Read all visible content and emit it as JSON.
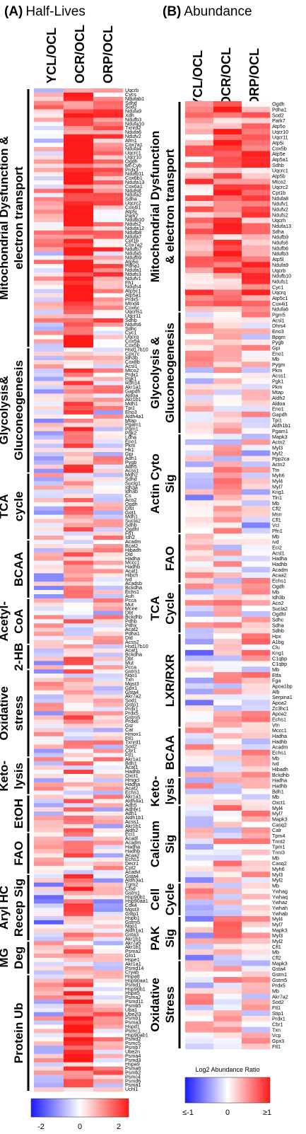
{
  "chart_data": [
    {
      "type": "heatmap",
      "panel_letter": "(A)",
      "title": "Half-Lives",
      "columns": [
        "YCL/OCL",
        "OCR/OCL",
        "ORP/OCL"
      ],
      "colorbar_ticks": [
        "-2",
        "0",
        "2"
      ],
      "value_range": [
        -2,
        2
      ],
      "colors": {
        "low": "#1a1aff",
        "mid": "#ffffff",
        "high": "#ff1a1a"
      },
      "categories": [
        {
          "label_lines": [
            "Mitochondrial Dysfunction &",
            "electron transport"
          ],
          "genes": [
            "Uqcrb",
            "Cycs",
            "Ndufab1",
            "Sdhd",
            "Sod2",
            "Ndufa9",
            "Xdh",
            "Ndufb3",
            "Ndufa10",
            "Txnrd2",
            "Ndufa6",
            "Ndufv2",
            "Afm1",
            "Cox7a1",
            "Ndufa4",
            "Uqcrc1",
            "Uqcr10",
            "Ogdh",
            "Mt-Cyb",
            "Prdx3",
            "Ndufb11",
            "Cox6b1",
            "Ndufa13",
            "Cox6a1",
            "Ndufs8",
            "Ndufa2",
            "Sdha",
            "Uqcrc2",
            "Cox4i1",
            "Atp5j",
            "Park7",
            "Ndufb10",
            "Ndufs2",
            "Ndufa12",
            "Ndufb8",
            "Ndufa7",
            "Cpt1b",
            "Cox7a2",
            "Ndufb7",
            "Ndufa5",
            "Ndufb9",
            "Atp5o",
            "Pdha1",
            "Ndufa1",
            "Ndufs3",
            "Ndufv1",
            "Fh1",
            "Ndufs4",
            "Atp5c1",
            "Atp5a1",
            "Prdx5",
            "Mtnd4",
            "Cox6c",
            "Uqcrfs1",
            "Uqcr11",
            "Sdhb",
            "Ndufs6",
            "Sdhc",
            "Cyc1",
            "Uqcrq",
            "Cox5a",
            "Cox5b"
          ]
        },
        {
          "label_lines": [
            "Glycolysis&",
            "Gluconeogenesis"
          ],
          "genes": [
            "Hsd17b10",
            "Cox7c",
            "Idh3b",
            "Cox8b",
            "Acsl1",
            "Mtco2",
            "Prdx1",
            "Pgk1",
            "Rdh14",
            "Akr1a1",
            "Gapdh",
            "Aldoa",
            "Akr1b1",
            "Mdh1",
            "Tpi1",
            "Eno3",
            "Aldh4a1",
            "Mtap",
            "Pgam1",
            "Pgm1",
            "Pgk2",
            "Ldha",
            "Eno1",
            "Pkm",
            "Hk1",
            "Gpi",
            "Adh1",
            "Pygb",
            "Adh5",
            "Acss1"
          ]
        },
        {
          "label_lines": [
            "TCA",
            "cycle"
          ],
          "genes": [
            "Mdh2",
            "Sdhd",
            "Suclg1",
            "Idh3a",
            "Idh3b",
            "Cs",
            "Aco2",
            "Ogdh",
            "Dlst",
            "Got1",
            "Mdh1",
            "Sucla2",
            "Sdhb",
            "Ogdhl",
            "Fh1",
            "Idh2"
          ]
        },
        {
          "label_lines": [
            "BCAA"
          ],
          "genes": [
            "Acadm",
            "Bcat2",
            "Hibadh",
            "Dld",
            "Hadha",
            "Mccc1",
            "Hadhb",
            "Acat1",
            "Hibch",
            "Ivd",
            "Acadsb",
            "Bckdha",
            "Echs1",
            "Auh"
          ]
        },
        {
          "label_lines": [
            "Acetyl-",
            "CoA"
          ],
          "genes": [
            "Pcca",
            "Mut",
            "Mcee",
            "Dbt",
            "Bckdhb",
            "Pdhb",
            "Pdhx",
            "Acat2",
            "Pdha1",
            "Dld",
            "Acss2"
          ]
        },
        {
          "label_lines": [
            "2-HB"
          ],
          "genes": [
            "Hsd17b10",
            "Acat1",
            "Bckdha",
            "Dbt",
            "Mut",
            "Pcca"
          ]
        },
        {
          "label_lines": [
            "Oxidative",
            "stress"
          ],
          "genes": [
            "Gstm1",
            "Nqo1",
            "Txn",
            "Mgst3",
            "Gpx1",
            "Gsta4",
            "Akr7a2",
            "Sod1",
            "Gstp1",
            "Prdx1",
            "Prdx5",
            "Gstm5",
            "Prdx6",
            "Gsr",
            "Cat",
            "Hmox1",
            "Ftl1",
            "Txnrd1",
            "Sod2",
            "Cbr1",
            "Ftl1"
          ]
        },
        {
          "label_lines": [
            "Keto-",
            "lysis"
          ],
          "genes": [
            "Akr1a1",
            "Bdh1",
            "Acat1",
            "Hadhb",
            "Oxct1",
            "Hmgcl",
            "Hadha",
            "Acat2",
            "Echs1"
          ]
        },
        {
          "label_lines": [
            "EtOH"
          ],
          "genes": [
            "Akr1a1",
            "Aldh4a1",
            "Adh5",
            "Adhfe1",
            "Adh1",
            "Aldh1b1",
            "Acss1",
            "Akr1b1",
            "Aldh2"
          ]
        },
        {
          "label_lines": [
            "FAO"
          ],
          "genes": [
            "Eci1",
            "Acadl",
            "Acadm",
            "Hadha",
            "Hadhb",
            "Acaa2",
            "Echs1",
            "Decr1",
            "Cpt2",
            "Acadvl"
          ]
        },
        {
          "label_lines": [
            "Aryl HC",
            "Recep Sig"
          ],
          "genes": [
            "Gsta4",
            "Aldh3a1",
            "Tgm2",
            "Ctsd",
            "Gstm1",
            "Hsp90b1",
            "Hsp90aa1",
            "Cdk4",
            "Mgst3",
            "Gstp1",
            "Hspb1",
            "Gstm5",
            "Nqo1",
            "Aldh1a1",
            "Gsta3",
            "Akr1b1"
          ]
        },
        {
          "label_lines": [
            "MG",
            "Deg"
          ],
          "genes": [
            "Akr7a5",
            "Akr1b1",
            "Psma2",
            "Glo1",
            "Hspe1",
            "Akr1a1",
            "Psmd14",
            "Cryab"
          ]
        },
        {
          "label_lines": [
            "Protein Ub"
          ],
          "genes": [
            "Hspa8",
            "Hsp90aa1",
            "Psmd1",
            "Hsp90b1",
            "Hspa5",
            "Psma2",
            "Psmd11",
            "Psmb5",
            "Uba1",
            "Ube2l3",
            "Psmb1",
            "Psma3",
            "Hspd1",
            "Psmc1",
            "Hsp90ab1",
            "Psmd2",
            "Psmc5",
            "Psmb7",
            "Ube2n",
            "Psma4",
            "Psmd3",
            "Hspa9",
            "Psma6",
            "Psmb2",
            "Psmc4",
            "Psmd6",
            "Psma1",
            "Uchl1"
          ]
        }
      ]
    },
    {
      "type": "heatmap",
      "panel_letter": "(B)",
      "title": "Abundance",
      "columns": [
        "YCL/OCL",
        "OCR/OCL",
        "ORP/OCL"
      ],
      "colorbar_title": "Log2 Abundance Ratio",
      "colorbar_ticks": [
        "≤-1",
        "0",
        "≥1"
      ],
      "value_range": [
        -1,
        1
      ],
      "colors": {
        "low": "#1a1aff",
        "mid": "#ffffff",
        "high": "#ff1a1a"
      },
      "categories": [
        {
          "label_lines": [
            "Mitochondrial Dysfunction",
            "& electron transport"
          ],
          "genes": [
            "Ogdh",
            "Pdha1",
            "Sod2",
            "Park7",
            "Atp5o",
            "Uqcr10",
            "Uqcr11",
            "Atp5i",
            "Cox5b",
            "Atp5e",
            "Atp5a1",
            "Sdhb",
            "Uqcrc1",
            "Atp5b",
            "Mtco2",
            "Uqcrc2",
            "Cpt1b",
            "Ndufa8",
            "Ndufv1",
            "Ndufv2",
            "Ndufs2",
            "Uqcrh",
            "Ndufa13",
            "Sdha",
            "Ndufb9",
            "Ndufs6",
            "Ndufb6",
            "Ndufb3",
            "Atp5l",
            "Ndufa9",
            "Uqcrb",
            "Ndufb10",
            "Ndufs1",
            "Cyc1",
            "Uqcrq",
            "Atp5c1",
            "Cox4i1",
            "Ndufa6"
          ]
        },
        {
          "label_lines": [
            "Glycolysis &",
            "Gluconeogenesis"
          ],
          "genes": [
            "Pgm5",
            "Acsl1",
            "Dhrs4",
            "Eno3",
            "Bpgm",
            "Pygb",
            "Gpi",
            "Eno1",
            "Mb",
            "Pygm",
            "Pkm",
            "Acss1",
            "Pgk1",
            "Pkm",
            "Mtap",
            "Aldh2",
            "Aldoa",
            "Eno1",
            "Gapdh",
            "Tpi1",
            "Aldh1b1",
            "Pgam1"
          ]
        },
        {
          "label_lines": [
            "Actin Cyto",
            "Sig"
          ],
          "genes": [
            "Mapk3",
            "Actn2",
            "Myl3",
            "Myl2",
            "Ppp2ca",
            "Actn2",
            "Ttn",
            "Myh6",
            "Myl4",
            "Myl7",
            "Kng1",
            "Tln1",
            "Mb",
            "Cfl2",
            "Msn",
            "Cfl1",
            "Vcl",
            "Pfn1"
          ]
        },
        {
          "label_lines": [
            "FAO"
          ],
          "genes": [
            "Mb",
            "Ivd",
            "Eci2",
            "Acsl1",
            "Hadha",
            "Hadhb",
            "Acadm",
            "Acaa2",
            "Echs1"
          ]
        },
        {
          "label_lines": [
            "TCA",
            "Cycle"
          ],
          "genes": [
            "Ogdh",
            "Mb",
            "Idh3b",
            "Aco2",
            "Sucla2",
            "Ogdhl",
            "Sdhc",
            "Sdha",
            "Sdhb"
          ]
        },
        {
          "label_lines": [
            "LXR/RXR"
          ],
          "genes": [
            "Hpx",
            "A1bg",
            "Clu",
            "Kng1",
            "C1qbp",
            "C1qbp",
            "Mb",
            "Etfa",
            "Fga",
            "Apoa1bp",
            "Alb",
            "Serpina1",
            "Apoa2",
            "Zc3hc1",
            "Apoa2",
            "Echs1",
            "Vtn"
          ]
        },
        {
          "label_lines": [
            "BCAA"
          ],
          "genes": [
            "Mccc1",
            "Hadha",
            "Hadhb",
            "Acadm",
            "Echs1",
            "Mb",
            "Ivd",
            "Hibadh",
            "Bckdhb"
          ]
        },
        {
          "label_lines": [
            "Keto-",
            "lysis"
          ],
          "genes": [
            "Hadha",
            "Hadhb",
            "Bdh1",
            "Mb",
            "Oxct1"
          ]
        },
        {
          "label_lines": [
            "Calcium",
            "Sig"
          ],
          "genes": [
            "Myl4",
            "Myl7",
            "Mapk3",
            "Casq2",
            "Calr",
            "Tpm4",
            "Tnnt2",
            "Tpm1",
            "Tnni3",
            "Mb",
            "Casq2",
            "Myh6",
            "Myl3",
            "Myl2"
          ]
        },
        {
          "label_lines": [
            "Cell",
            "Cycle"
          ],
          "genes": [
            "Mb",
            "Ywhag",
            "Ywhaq",
            "Ywhaz",
            "Ywhah",
            "Ywhab"
          ]
        },
        {
          "label_lines": [
            "PAK",
            "Sig"
          ],
          "genes": [
            "Myl4",
            "Myl7",
            "Mapk3",
            "Myl3",
            "Myl2",
            "Cfl1",
            "Mb",
            "Cfl2"
          ]
        },
        {
          "label_lines": [
            "Oxidative",
            "Stress"
          ],
          "genes": [
            "Mapk3",
            "Gsta4",
            "Gstm1",
            "Gstm5",
            "Prdx5",
            "Mb",
            "Akr7a2",
            "Sod2",
            "Ftl1",
            "Stip1",
            "Prdx1",
            "Cbr1",
            "Txn",
            "Vcp",
            "Gpx3",
            "Ftl1"
          ]
        }
      ]
    }
  ]
}
